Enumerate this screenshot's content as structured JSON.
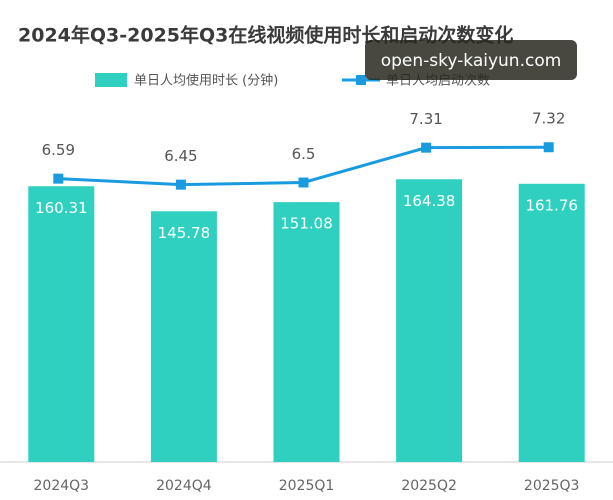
{
  "chart_data": {
    "type": "bar-line",
    "title": "2024年Q3-2025年Q3在线视频使用时长和启动次数变化",
    "categories": [
      "2024Q3",
      "2024Q4",
      "2025Q1",
      "2025Q2",
      "2025Q3"
    ],
    "series": [
      {
        "name": "单日人均使用时长 (分钟)",
        "type": "bar",
        "color": "#2fd0c0",
        "values": [
          160.31,
          145.78,
          151.08,
          164.38,
          161.76
        ]
      },
      {
        "name": "单日人均启动次数",
        "type": "line",
        "axis": "y2",
        "color": "#1a9be0",
        "values": [
          6.59,
          6.45,
          6.5,
          7.31,
          7.32
        ]
      }
    ],
    "ylim": [
      0,
      200
    ],
    "y2lim": [
      0,
      8
    ],
    "watermark": "open-sky-kaiyun.com"
  }
}
